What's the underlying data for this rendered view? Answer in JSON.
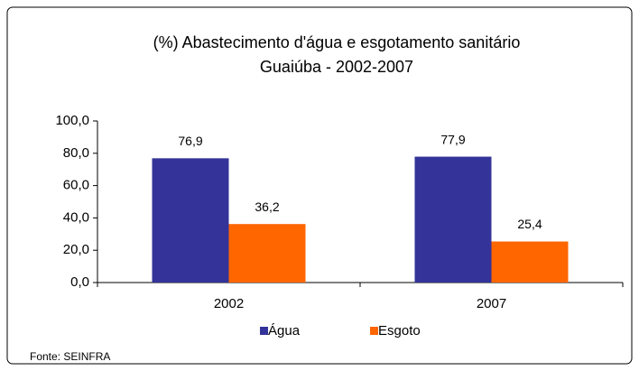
{
  "chart_data": {
    "type": "bar",
    "title": "(%) Abastecimento d'água e esgotamento sanitário",
    "subtitle": "Guaiúba - 2002-2007",
    "categories": [
      "2002",
      "2007"
    ],
    "series": [
      {
        "name": "Água",
        "color": "#333399",
        "values": [
          76.9,
          77.9
        ],
        "value_labels": [
          "76,9",
          "77,9"
        ]
      },
      {
        "name": "Esgoto",
        "color": "#ff6600",
        "values": [
          36.2,
          25.4
        ],
        "value_labels": [
          "36,2",
          "25,4"
        ]
      }
    ],
    "ylim": [
      0,
      100
    ],
    "yticks": [
      {
        "value": 0,
        "label": "0,0"
      },
      {
        "value": 20,
        "label": "20,0"
      },
      {
        "value": 40,
        "label": "40,0"
      },
      {
        "value": 60,
        "label": "60,0"
      },
      {
        "value": 80,
        "label": "80,0"
      },
      {
        "value": 100,
        "label": "100,0"
      }
    ],
    "legend": "bottom",
    "source": "Fonte: SEINFRA"
  }
}
